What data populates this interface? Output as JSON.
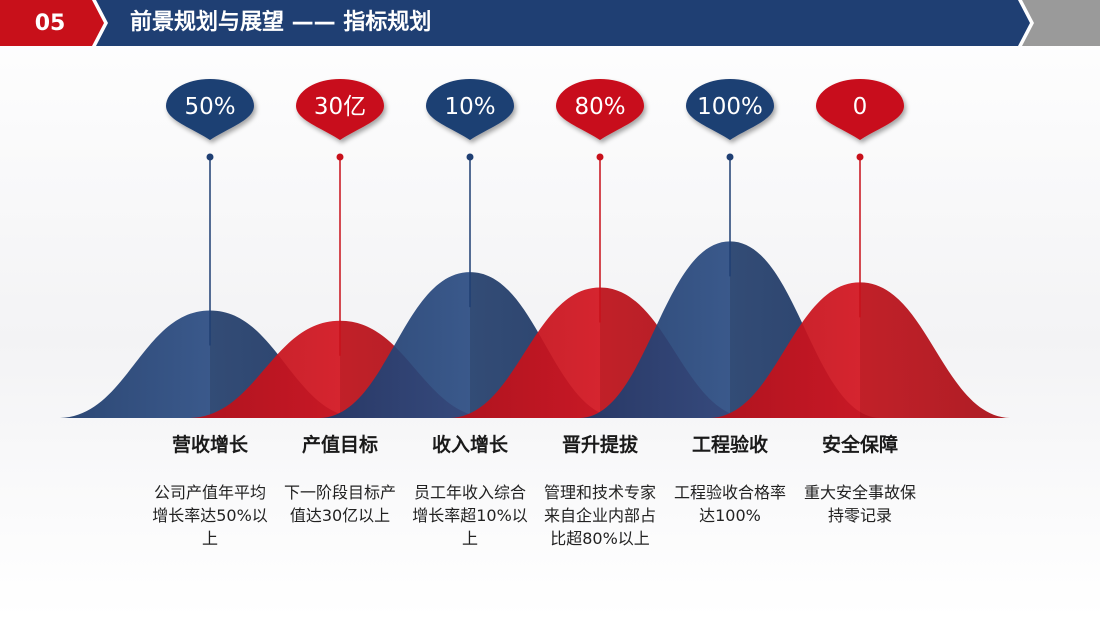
{
  "header": {
    "number": "05",
    "title": "前景规划与展望 —— 指标规划",
    "colors": {
      "navy": "#1f3f73",
      "red": "#c8101a",
      "gray": "#9a9a9a"
    }
  },
  "indicators": [
    {
      "value": "50%",
      "color": "navy",
      "peak": 0.42,
      "name": "营收增长",
      "desc": "公司产值年平均增长率达50%以上"
    },
    {
      "value": "30亿",
      "color": "red",
      "peak": 0.38,
      "name": "产值目标",
      "desc": "下一阶段目标产值达30亿以上"
    },
    {
      "value": "10%",
      "color": "navy",
      "peak": 0.57,
      "name": "收入增长",
      "desc": "员工年收入综合增长率超10%以上"
    },
    {
      "value": "80%",
      "color": "red",
      "peak": 0.51,
      "name": "晋升提拔",
      "desc": "管理和技术专家来自企业内部占比超80%以上"
    },
    {
      "value": "100%",
      "color": "navy",
      "peak": 0.69,
      "name": "工程验收",
      "desc": "工程验收合格率达100%"
    },
    {
      "value": "0",
      "color": "red",
      "peak": 0.53,
      "name": "安全保障",
      "desc": "重大安全事故保持零记录"
    }
  ]
}
